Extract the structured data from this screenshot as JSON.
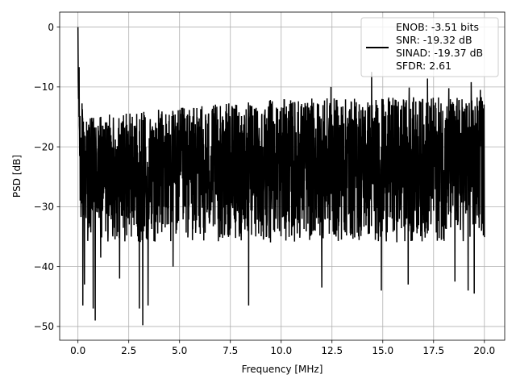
{
  "chart_data": {
    "type": "line",
    "title": "",
    "xlabel": "Frequency [MHz]",
    "ylabel": "PSD [dB]",
    "xlim": [
      -0.9,
      21.0
    ],
    "ylim": [
      -52.3,
      2.5
    ],
    "xticks": [
      0.0,
      2.5,
      5.0,
      7.5,
      10.0,
      12.5,
      15.0,
      17.5,
      20.0
    ],
    "xtick_labels": [
      "0.0",
      "2.5",
      "5.0",
      "7.5",
      "10.0",
      "12.5",
      "15.0",
      "17.5",
      "20.0"
    ],
    "yticks": [
      0,
      -10,
      -20,
      -30,
      -40,
      -50
    ],
    "ytick_labels": [
      "0",
      "−10",
      "−20",
      "−30",
      "−40",
      "−50"
    ],
    "grid": true,
    "legend": {
      "placement": "top-right",
      "entries": [
        "ENOB: -3.51 bits",
        "SNR: -19.32 dB",
        "SINAD: -19.37 dB",
        "SFDR: 2.61"
      ]
    },
    "series": [
      {
        "color": "#000000",
        "x_start": 0.0,
        "x_end": 20.0,
        "peak": {
          "x": 0.0,
          "y": 0.0
        },
        "envelope": [
          {
            "x": 0.0,
            "upper": 0.0,
            "lower": -6.0
          },
          {
            "x": 0.1,
            "upper": -11.0,
            "lower": -33.0
          },
          {
            "x": 0.5,
            "upper": -15.0,
            "lower": -36.0
          },
          {
            "x": 3.0,
            "upper": -14.0,
            "lower": -36.0
          },
          {
            "x": 10.0,
            "upper": -12.0,
            "lower": -36.0
          },
          {
            "x": 20.0,
            "upper": -11.5,
            "lower": -36.0
          }
        ],
        "typical_floor": -22,
        "deep_nulls": [
          {
            "x": 0.24,
            "y": -46.5
          },
          {
            "x": 0.32,
            "y": -43.0
          },
          {
            "x": 0.75,
            "y": -47.0
          },
          {
            "x": 0.85,
            "y": -49.0
          },
          {
            "x": 1.12,
            "y": -38.5
          },
          {
            "x": 2.05,
            "y": -42.0
          },
          {
            "x": 3.02,
            "y": -47.0
          },
          {
            "x": 3.19,
            "y": -49.8
          },
          {
            "x": 3.45,
            "y": -46.5
          },
          {
            "x": 4.68,
            "y": -40.0
          },
          {
            "x": 8.4,
            "y": -46.5
          },
          {
            "x": 12.0,
            "y": -43.5
          },
          {
            "x": 14.93,
            "y": -44.0
          },
          {
            "x": 16.25,
            "y": -43.0
          },
          {
            "x": 18.55,
            "y": -42.5
          },
          {
            "x": 19.2,
            "y": -44.0
          },
          {
            "x": 19.5,
            "y": -44.5
          }
        ],
        "high_peaks": [
          {
            "x": 14.45,
            "y": -7.5
          },
          {
            "x": 17.2,
            "y": -8.6
          },
          {
            "x": 19.35,
            "y": -9.2
          },
          {
            "x": 12.45,
            "y": -10.0
          },
          {
            "x": 16.3,
            "y": -10.1
          },
          {
            "x": 18.25,
            "y": -10.2
          },
          {
            "x": 19.8,
            "y": -10.5
          }
        ]
      }
    ]
  }
}
